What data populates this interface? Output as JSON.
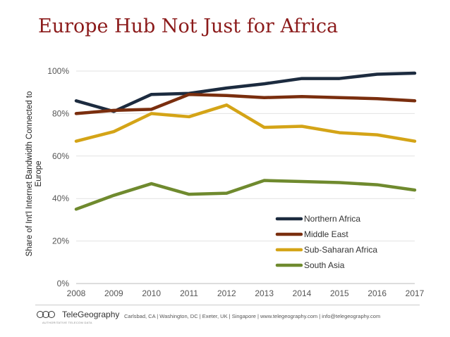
{
  "title": "Europe Hub Not Just for Africa",
  "footer": {
    "logo_text": "TeleGeography",
    "logo_tagline": "AUTHORITATIVE TELECOM DATA",
    "contact": "Carlsbad, CA | Washington, DC | Exeter, UK | Singapore | www.telegeography.com | info@telegeography.com"
  },
  "chart_data": {
    "type": "line",
    "title": "Europe Hub Not Just for Africa",
    "ylabel": "Share of Int'l Internet Bandwidth Connected to Europe",
    "xlabel": "",
    "x": [
      "2008",
      "2009",
      "2010",
      "2011",
      "2012",
      "2013",
      "2014",
      "2015",
      "2016",
      "2017"
    ],
    "yticks": [
      "0%",
      "20%",
      "40%",
      "60%",
      "80%",
      "100%"
    ],
    "ylim": [
      0,
      100
    ],
    "grid": "horizontal",
    "legend_position": "bottom-right",
    "series": [
      {
        "name": "Northern Africa",
        "color": "#1c2b3f",
        "values": [
          86,
          81,
          89,
          89.5,
          92,
          94,
          96.5,
          96.5,
          98.5,
          99
        ]
      },
      {
        "name": "Middle East",
        "color": "#7a2e0e",
        "values": [
          80,
          81.5,
          82,
          89,
          88.5,
          87.5,
          88,
          87.5,
          87,
          86
        ]
      },
      {
        "name": "Sub-Saharan Africa",
        "color": "#d4a417",
        "values": [
          67,
          71.5,
          80,
          78.5,
          84,
          73.5,
          74,
          71,
          70,
          67
        ]
      },
      {
        "name": "South Asia",
        "color": "#6f8a2e",
        "values": [
          35,
          41.5,
          47,
          42,
          42.5,
          48.5,
          48,
          47.5,
          46.5,
          44
        ]
      }
    ]
  }
}
